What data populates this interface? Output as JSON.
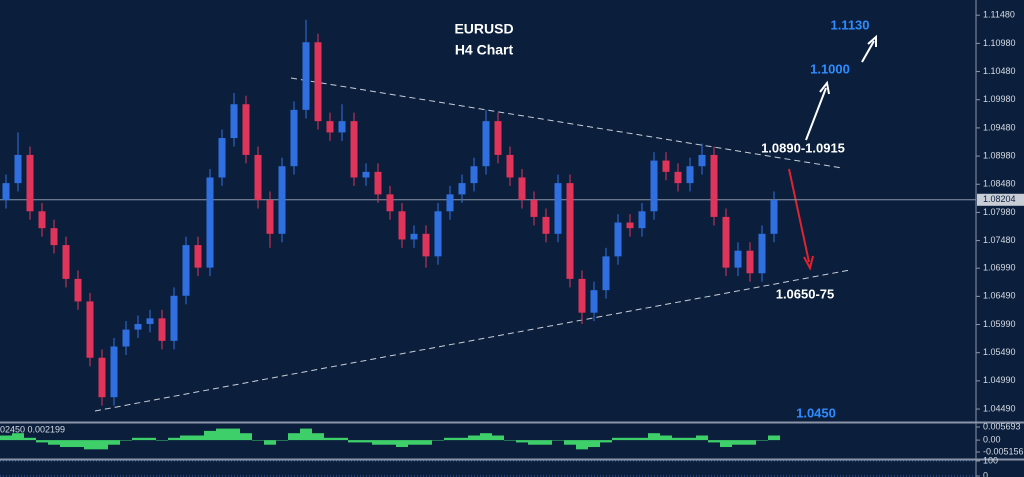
{
  "chart_data": [
    {
      "type": "candlestick",
      "title": "EURUSD",
      "subtitle": "H4 Chart",
      "up_color": "#2f6fe0",
      "down_color": "#e0345a",
      "open": [
        1.082,
        1.085,
        1.09,
        1.08,
        1.077,
        1.074,
        1.068,
        1.064,
        1.054,
        1.047,
        1.056,
        1.059,
        1.06,
        1.061,
        1.057,
        1.065,
        1.074,
        1.07,
        1.086,
        1.093,
        1.099,
        1.09,
        1.082,
        1.076,
        1.088,
        1.098,
        1.11,
        1.096,
        1.094,
        1.096,
        1.086,
        1.087,
        1.083,
        1.08,
        1.075,
        1.076,
        1.072,
        1.08,
        1.083,
        1.085,
        1.088,
        1.096,
        1.09,
        1.086,
        1.082,
        1.079,
        1.076,
        1.085,
        1.068,
        1.062,
        1.066,
        1.072,
        1.078,
        1.077,
        1.08,
        1.089,
        1.087,
        1.085,
        1.088,
        1.09,
        1.079,
        1.07,
        1.073,
        1.069,
        1.076
      ],
      "high": [
        1.0865,
        1.094,
        1.0915,
        1.0815,
        1.0785,
        1.0755,
        1.0695,
        1.0655,
        1.0555,
        1.0575,
        1.0605,
        1.0615,
        1.0625,
        1.0625,
        1.0665,
        1.0755,
        1.0755,
        1.0875,
        1.0945,
        1.101,
        1.1005,
        1.0915,
        1.0835,
        1.0895,
        1.0995,
        1.114,
        1.1115,
        1.0975,
        1.099,
        1.0975,
        1.0885,
        1.0885,
        1.0845,
        1.0815,
        1.0775,
        1.0775,
        1.0815,
        1.0845,
        1.0865,
        1.0895,
        1.098,
        1.0975,
        1.0915,
        1.0875,
        1.0835,
        1.0805,
        1.0865,
        1.0865,
        1.0695,
        1.0675,
        1.0735,
        1.0795,
        1.0795,
        1.0815,
        1.0905,
        1.0905,
        1.0885,
        1.0895,
        1.092,
        1.0915,
        1.0805,
        1.0745,
        1.0745,
        1.0775,
        1.0835
      ],
      "low": [
        1.0805,
        1.0835,
        1.0785,
        1.0755,
        1.0725,
        1.0665,
        1.0625,
        1.0525,
        1.0455,
        1.0455,
        1.0545,
        1.0575,
        1.0585,
        1.0555,
        1.0555,
        1.0635,
        1.0685,
        1.0685,
        1.0845,
        1.0915,
        1.0885,
        1.0805,
        1.0735,
        1.0745,
        1.0865,
        1.0965,
        1.0945,
        1.0925,
        1.0925,
        1.0845,
        1.0845,
        1.0815,
        1.0785,
        1.0735,
        1.0735,
        1.07,
        1.0705,
        1.0785,
        1.0815,
        1.0835,
        1.0865,
        1.0885,
        1.0845,
        1.0805,
        1.0775,
        1.0745,
        1.0745,
        1.0665,
        1.06,
        1.0605,
        1.0645,
        1.0705,
        1.0755,
        1.0755,
        1.0785,
        1.0855,
        1.0835,
        1.0835,
        1.0865,
        1.0775,
        1.0685,
        1.0685,
        1.0675,
        1.0675,
        1.0745
      ],
      "close": [
        1.085,
        1.09,
        1.08,
        1.077,
        1.074,
        1.068,
        1.064,
        1.054,
        1.047,
        1.056,
        1.059,
        1.06,
        1.061,
        1.057,
        1.065,
        1.074,
        1.07,
        1.086,
        1.093,
        1.099,
        1.09,
        1.082,
        1.076,
        1.088,
        1.098,
        1.11,
        1.096,
        1.094,
        1.096,
        1.086,
        1.087,
        1.083,
        1.08,
        1.075,
        1.076,
        1.072,
        1.08,
        1.083,
        1.085,
        1.088,
        1.096,
        1.09,
        1.086,
        1.082,
        1.079,
        1.076,
        1.085,
        1.068,
        1.062,
        1.066,
        1.072,
        1.078,
        1.077,
        1.08,
        1.089,
        1.087,
        1.085,
        1.088,
        1.09,
        1.079,
        1.07,
        1.073,
        1.069,
        1.076,
        1.082
      ],
      "ylim": [
        1.0426,
        1.1175
      ],
      "yticks": [
        {
          "value": 1.1148,
          "label": "1.11480"
        },
        {
          "value": 1.1098,
          "label": "1.10980"
        },
        {
          "value": 1.1048,
          "label": "1.10480"
        },
        {
          "value": 1.0998,
          "label": "1.09980"
        },
        {
          "value": 1.0948,
          "label": "1.09480"
        },
        {
          "value": 1.0898,
          "label": "1.08980"
        },
        {
          "value": 1.0848,
          "label": "1.08480"
        },
        {
          "value": 1.0798,
          "label": "1.07980"
        },
        {
          "value": 1.0748,
          "label": "1.07480"
        },
        {
          "value": 1.0699,
          "label": "1.06990"
        },
        {
          "value": 1.0649,
          "label": "1.06490"
        },
        {
          "value": 1.0599,
          "label": "1.05990"
        },
        {
          "value": 1.0549,
          "label": "1.05490"
        },
        {
          "value": 1.0499,
          "label": "1.04990"
        },
        {
          "value": 1.0449,
          "label": "1.04490"
        }
      ],
      "current_price": 1.08204,
      "current_price_label": "1.08204",
      "annotations": [
        {
          "text": "1.1130",
          "color": "#2f8cff"
        },
        {
          "text": "1.1000",
          "color": "#2f8cff"
        },
        {
          "text": "1.0890-1.0915",
          "color": "#ffffff"
        },
        {
          "text": "1.0650-75",
          "color": "#ffffff"
        },
        {
          "text": "1.0450",
          "color": "#2f8cff"
        }
      ]
    },
    {
      "type": "histogram",
      "label": "02450 0.002199",
      "color": "#3ecf6a",
      "values": [
        0.002,
        0.003,
        0.001,
        -0.001,
        -0.002,
        -0.003,
        -0.003,
        -0.004,
        -0.004,
        -0.002,
        0.0,
        0.001,
        0.001,
        0.0,
        0.001,
        0.002,
        0.002,
        0.004,
        0.005,
        0.005,
        0.003,
        0.0,
        -0.002,
        0.0,
        0.003,
        0.005,
        0.003,
        0.001,
        0.001,
        -0.001,
        -0.001,
        -0.002,
        -0.002,
        -0.003,
        -0.002,
        -0.002,
        0.0,
        0.001,
        0.001,
        0.002,
        0.003,
        0.002,
        0.0,
        -0.001,
        -0.002,
        -0.002,
        0.0,
        -0.002,
        -0.004,
        -0.003,
        -0.001,
        0.001,
        0.001,
        0.001,
        0.003,
        0.002,
        0.001,
        0.001,
        0.002,
        -0.001,
        -0.003,
        -0.002,
        -0.002,
        0.0,
        0.002
      ],
      "ylim": [
        -0.00776,
        0.00699
      ],
      "yticks": [
        0.005693,
        {
          "value": 0,
          "label": "0.00"
        },
        -0.005156
      ]
    },
    {
      "type": "oscillator",
      "ylim": [
        0,
        100
      ],
      "yticks": [
        100,
        0
      ]
    }
  ]
}
